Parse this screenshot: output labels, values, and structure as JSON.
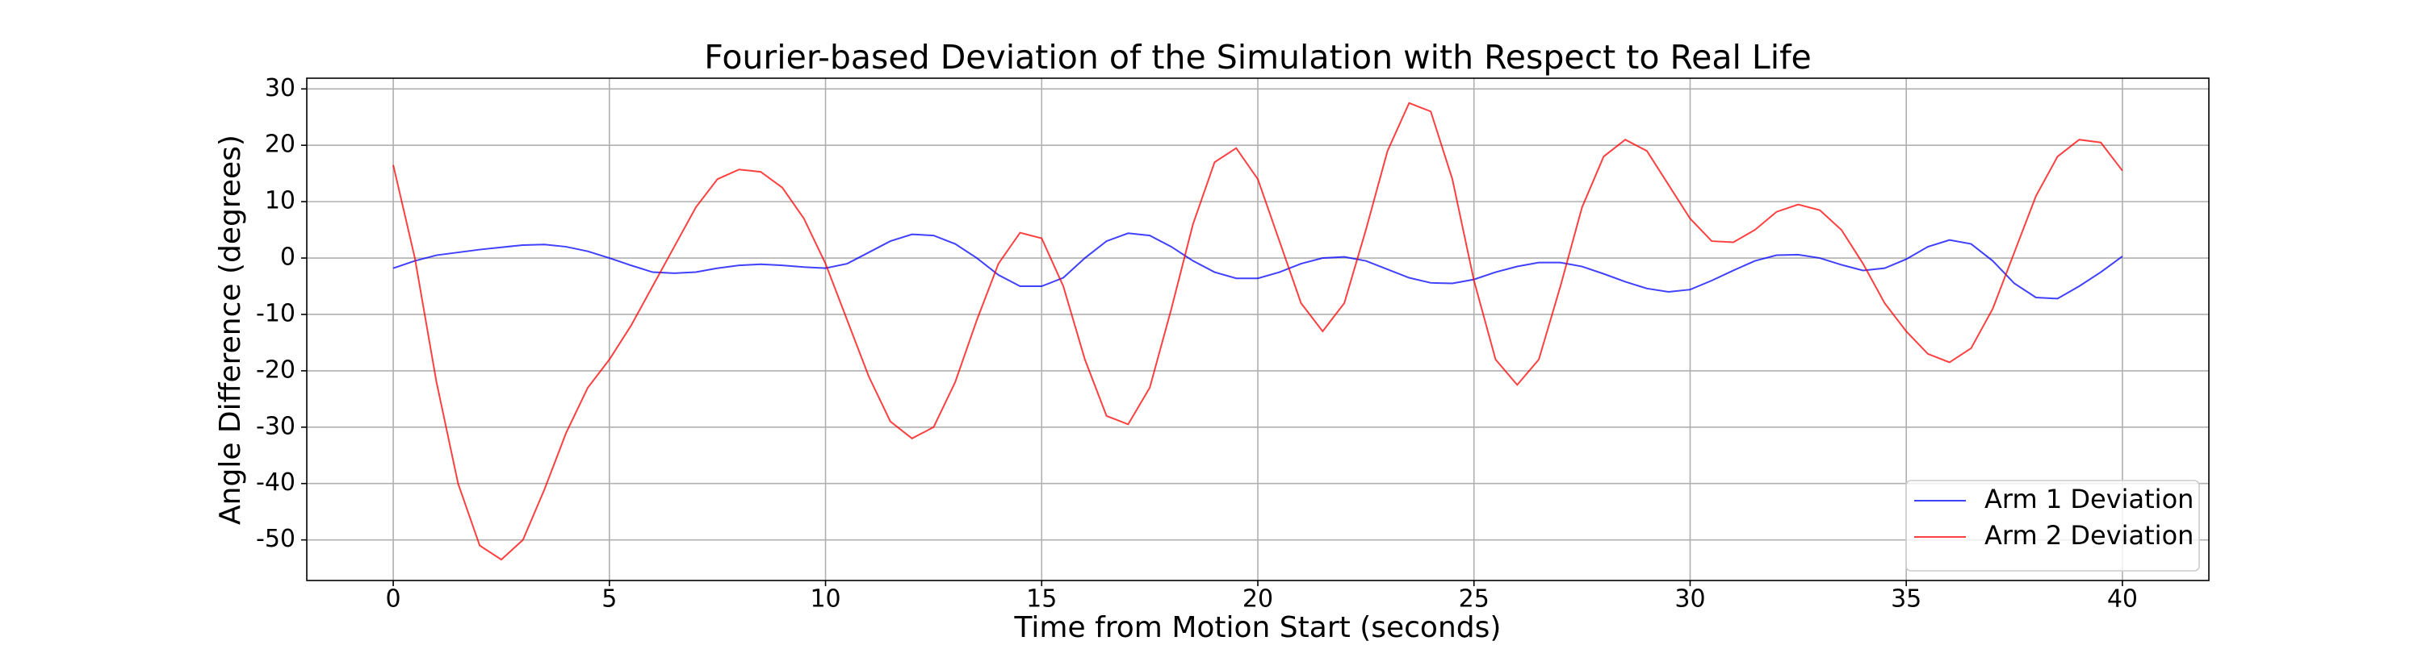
{
  "chart_data": {
    "type": "line",
    "title": "Fourier-based Deviation of the Simulation with Respect to Real Life",
    "x_label": "Time from Motion Start (seconds)",
    "y_label": "Angle Difference (degrees)",
    "x": [
      0,
      0.5,
      1,
      1.5,
      2,
      2.5,
      3,
      3.5,
      4,
      4.5,
      5,
      5.5,
      6,
      6.5,
      7,
      7.5,
      8,
      8.5,
      9,
      9.5,
      10,
      10.5,
      11,
      11.5,
      12,
      12.5,
      13,
      13.5,
      14,
      14.5,
      15,
      15.5,
      16,
      16.5,
      17,
      17.5,
      18,
      18.5,
      19,
      19.5,
      20,
      20.5,
      21,
      21.5,
      22,
      22.5,
      23,
      23.5,
      24,
      24.5,
      25,
      25.5,
      26,
      26.5,
      27,
      27.5,
      28,
      28.5,
      29,
      29.5,
      30,
      30.5,
      31,
      31.5,
      32,
      32.5,
      33,
      33.5,
      34,
      34.5,
      35,
      35.5,
      36,
      36.5,
      37,
      37.5,
      38,
      38.5,
      39,
      39.5,
      40
    ],
    "series": [
      {
        "name": "Arm 1 Deviation",
        "color": "#0000ff",
        "values": [
          -1.8,
          -0.5,
          0.5,
          1.0,
          1.5,
          1.9,
          2.3,
          2.4,
          2,
          1.2,
          0,
          -1.3,
          -2.5,
          -2.7,
          -2.5,
          -1.8,
          -1.3,
          -1.1,
          -1.3,
          -1.6,
          -1.8,
          -1,
          1,
          3,
          4.2,
          4,
          2.5,
          0,
          -3,
          -5,
          -5,
          -3.5,
          0,
          3,
          4.4,
          4,
          2,
          -0.5,
          -2.5,
          -3.6,
          -3.6,
          -2.5,
          -1,
          0,
          0.2,
          -0.5,
          -2,
          -3.5,
          -4.4,
          -4.5,
          -3.8,
          -2.5,
          -1.5,
          -0.8,
          -0.8,
          -1.5,
          -2.8,
          -4.2,
          -5.4,
          -6,
          -5.6,
          -4,
          -2.2,
          -0.5,
          0.5,
          0.6,
          0,
          -1.2,
          -2.2,
          -1.8,
          -0.2,
          2,
          3.2,
          2.5,
          -0.5,
          -4.5,
          -7,
          -7.2,
          -5,
          -2.5,
          0.3
        ]
      },
      {
        "name": "Arm 2 Deviation",
        "color": "#ff0000",
        "values": [
          16.5,
          0,
          -22,
          -40,
          -51,
          -53.5,
          -50,
          -41,
          -31,
          -23,
          -18,
          -12,
          -5,
          2,
          9,
          14,
          15.7,
          15.3,
          12.5,
          7,
          -1,
          -11,
          -21,
          -29,
          -32,
          -30,
          -22,
          -11,
          -1,
          4.5,
          3.5,
          -5,
          -18,
          -28,
          -29.5,
          -23,
          -9,
          6,
          17,
          19.5,
          14,
          3,
          -8,
          -13,
          -8,
          5,
          19,
          27.5,
          26,
          14,
          -4,
          -18,
          -22.5,
          -18,
          -5,
          9,
          18,
          21,
          19,
          13,
          7,
          3,
          2.8,
          5,
          8.2,
          9.5,
          8.5,
          5,
          -1,
          -8,
          -13,
          -17,
          -18.5,
          -16,
          -9,
          1,
          11,
          18,
          21,
          20.5,
          15.5
        ]
      }
    ],
    "xlim": [
      -2,
      42
    ],
    "xticks": [
      0,
      5,
      10,
      15,
      20,
      25,
      30,
      35,
      40
    ],
    "ylim": [
      -57.2,
      31.9
    ],
    "yticks": [
      -50,
      -40,
      -30,
      -20,
      -10,
      0,
      10,
      20,
      30
    ],
    "grid": true,
    "legend": "lower right"
  }
}
